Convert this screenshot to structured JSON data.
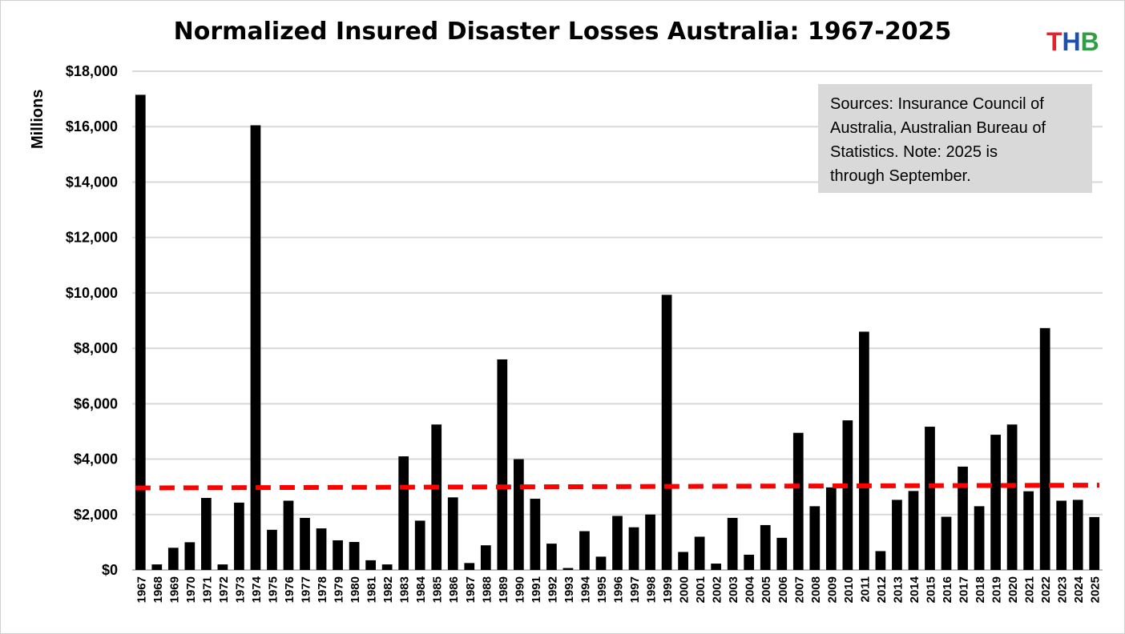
{
  "chart_data": {
    "type": "bar",
    "title": "Normalized Insured Disaster Losses Australia: 1967-2025",
    "ylabel": "Millions",
    "xlabel": "",
    "ylim": [
      0,
      18000
    ],
    "y_ticks": [
      "$0",
      "$2,000",
      "$4,000",
      "$6,000",
      "$8,000",
      "$10,000",
      "$12,000",
      "$14,000",
      "$16,000",
      "$18,000"
    ],
    "y_tick_values": [
      0,
      2000,
      4000,
      6000,
      8000,
      10000,
      12000,
      14000,
      16000,
      18000
    ],
    "grid": "horizontal",
    "bar_color": "#000000",
    "categories": [
      "1967",
      "1968",
      "1969",
      "1970",
      "1971",
      "1972",
      "1973",
      "1974",
      "1975",
      "1976",
      "1977",
      "1978",
      "1979",
      "1980",
      "1981",
      "1982",
      "1983",
      "1984",
      "1985",
      "1986",
      "1987",
      "1988",
      "1989",
      "1990",
      "1991",
      "1992",
      "1993",
      "1994",
      "1995",
      "1996",
      "1997",
      "1998",
      "1999",
      "2000",
      "2001",
      "2002",
      "2003",
      "2004",
      "2005",
      "2006",
      "2007",
      "2008",
      "2009",
      "2010",
      "2011",
      "2012",
      "2013",
      "2014",
      "2015",
      "2016",
      "2017",
      "2018",
      "2019",
      "2020",
      "2021",
      "2022",
      "2023",
      "2024",
      "2025"
    ],
    "values": [
      17150,
      200,
      800,
      1000,
      2600,
      200,
      2430,
      16050,
      1450,
      2500,
      1880,
      1500,
      1070,
      1010,
      350,
      200,
      4100,
      1780,
      5250,
      2620,
      250,
      890,
      7600,
      4000,
      2570,
      950,
      70,
      1400,
      480,
      1950,
      1540,
      2000,
      9930,
      650,
      1200,
      230,
      1880,
      550,
      1620,
      1160,
      4950,
      2300,
      2980,
      5400,
      8600,
      680,
      2530,
      2850,
      5170,
      1920,
      3730,
      2300,
      4880,
      5250,
      2840,
      8730,
      2500,
      2530,
      1910
    ],
    "trend": {
      "start": 2960,
      "end": 3060,
      "color": "#ff0000",
      "style": "dashed"
    },
    "annotation": {
      "lines": [
        "Sources: Insurance Council of",
        "Australia, Australian Bureau of",
        "Statistics. Note: 2025 is",
        "through September."
      ]
    }
  },
  "logo": {
    "letters": [
      {
        "char": "T",
        "color": "#e8222a"
      },
      {
        "char": "H",
        "color": "#1f4fa8"
      },
      {
        "char": "B",
        "color": "#2ea043"
      }
    ]
  }
}
